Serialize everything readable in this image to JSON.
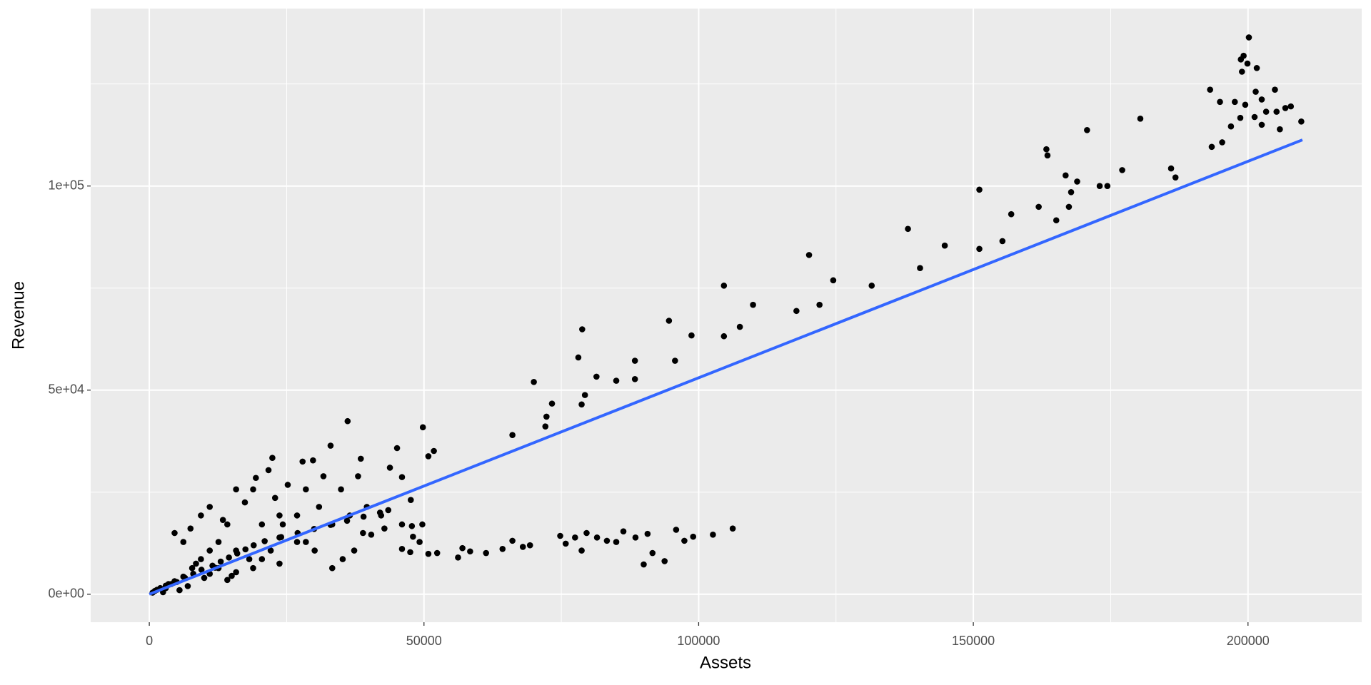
{
  "chart_data": {
    "type": "scatter",
    "x_label": "Assets",
    "y_label": "Revenue",
    "color": "#000000",
    "xlim": [
      -10670,
      220700
    ],
    "ylim": [
      -6850,
      143470
    ],
    "xticks": [
      0,
      50000,
      100000,
      150000,
      200000
    ],
    "minor_xticks": [
      25000,
      75000,
      125000,
      175000
    ],
    "yticks": [
      {
        "value": 0,
        "label": "0e+00"
      },
      {
        "value": 50000,
        "label": "5e+04"
      },
      {
        "value": 100000,
        "label": "1e+05"
      }
    ],
    "minor_yticks": [
      25000,
      75000,
      125000
    ],
    "grid": true,
    "panel_color": "#ebebeb",
    "fit_line": {
      "x": [
        0,
        209900
      ],
      "y": [
        0,
        111300
      ],
      "color": "#3366ff"
    },
    "x": [
      200160,
      199200,
      198700,
      199900,
      198900,
      201600,
      193100,
      201400,
      204900,
      194900,
      197600,
      199500,
      202500,
      205200,
      206800,
      207800,
      209700,
      198600,
      201200,
      203300,
      196900,
      202500,
      205800,
      193400,
      195300,
      180400,
      170700,
      163300,
      163500,
      166800,
      168900,
      167800,
      173000,
      174400,
      177100,
      186000,
      186800,
      151100,
      161900,
      165100,
      167400,
      156900,
      155300,
      151100,
      144800,
      138100,
      140300,
      120100,
      124500,
      131500,
      122000,
      117800,
      104600,
      109900,
      107500,
      104600,
      98700,
      94600,
      95700,
      88400,
      88400,
      85000,
      81400,
      78800,
      79300,
      78700,
      78100,
      73300,
      72300,
      72100,
      70000,
      66100,
      49800,
      51800,
      50800,
      36100,
      45100,
      33000,
      38500,
      22400,
      27900,
      29800,
      21700,
      19400,
      106200,
      102600,
      99000,
      97400,
      95900,
      93800,
      91600,
      90700,
      90000,
      88500,
      86300,
      85000,
      83300,
      81500,
      79600,
      77500,
      75800,
      74800,
      78700,
      69300,
      68000,
      66100,
      64300,
      61300,
      58400,
      57000,
      56200,
      52400,
      50800,
      49200,
      47500,
      46000,
      48000,
      47800,
      49700,
      46000,
      42800,
      40400,
      47600,
      46000,
      43800,
      43500,
      42200,
      38900,
      37300,
      35200,
      33300,
      30900,
      28500,
      26900,
      24300,
      23700,
      22100,
      20500,
      18900,
      17400,
      15800,
      14200,
      12600,
      11000,
      9400,
      7800,
      6200,
      4600,
      3000,
      1400,
      600,
      4600,
      6200,
      7500,
      9400,
      11000,
      13400,
      15800,
      18200,
      20500,
      23700,
      26900,
      30100,
      33300,
      36500,
      39600,
      34900,
      38000,
      31700,
      25200,
      22900,
      28500,
      12600,
      15800,
      18900,
      23700,
      11000,
      14200,
      2000,
      3500,
      5000,
      6500,
      8000,
      9500,
      11500,
      13000,
      14500,
      16000,
      17500,
      19000,
      21000,
      24000,
      27000,
      30000,
      33000,
      36000,
      39000,
      42000,
      5500,
      7000,
      10000,
      12000,
      4000,
      3000,
      2500,
      1000,
      8500,
      15000
    ],
    "y": [
      136400,
      131900,
      131000,
      130000,
      128000,
      128900,
      123600,
      123100,
      123600,
      120600,
      120600,
      119900,
      121200,
      118200,
      119100,
      119500,
      115800,
      116700,
      116900,
      118200,
      114600,
      115000,
      113900,
      109600,
      110700,
      116500,
      113700,
      109000,
      107500,
      102600,
      101100,
      98500,
      100000,
      100000,
      103900,
      104300,
      102100,
      99100,
      94900,
      91600,
      94900,
      93100,
      86500,
      84600,
      85400,
      89500,
      79900,
      83100,
      76900,
      75600,
      70900,
      69400,
      75600,
      70900,
      65500,
      63200,
      63400,
      67000,
      57200,
      52700,
      57200,
      52300,
      53300,
      64900,
      48800,
      46500,
      58000,
      46700,
      43500,
      41100,
      52000,
      39000,
      40900,
      35100,
      33800,
      42400,
      35800,
      36400,
      33200,
      33400,
      32500,
      32800,
      30400,
      28500,
      16100,
      14600,
      14100,
      13100,
      15800,
      8100,
      10100,
      14800,
      7300,
      13900,
      15400,
      12800,
      13100,
      13900,
      15000,
      13900,
      12400,
      14300,
      10700,
      12000,
      11600,
      13100,
      11100,
      10100,
      10500,
      11300,
      9000,
      10100,
      9900,
      12800,
      10300,
      11100,
      14100,
      16700,
      17100,
      17100,
      16100,
      14600,
      23100,
      28700,
      31000,
      20600,
      19300,
      15000,
      10700,
      8600,
      6400,
      21400,
      25700,
      19300,
      17100,
      13900,
      10700,
      8600,
      25700,
      22500,
      25700,
      17100,
      12800,
      10700,
      8600,
      6400,
      4300,
      3200,
      2100,
      1100,
      400,
      15000,
      12800,
      16100,
      19300,
      21400,
      18200,
      10700,
      8600,
      17100,
      19300,
      12800,
      10700,
      17100,
      19300,
      21400,
      25700,
      28900,
      28900,
      26800,
      23600,
      12800,
      6400,
      5400,
      6400,
      7500,
      5000,
      3500,
      1500,
      2500,
      3000,
      4000,
      5000,
      6000,
      7000,
      8000,
      9000,
      10000,
      11000,
      12000,
      13000,
      14000,
      15000,
      16000,
      17000,
      18000,
      19000,
      20000,
      1000,
      2000,
      4000,
      6500,
      2500,
      1500,
      500,
      800,
      7500,
      4500
    ]
  }
}
